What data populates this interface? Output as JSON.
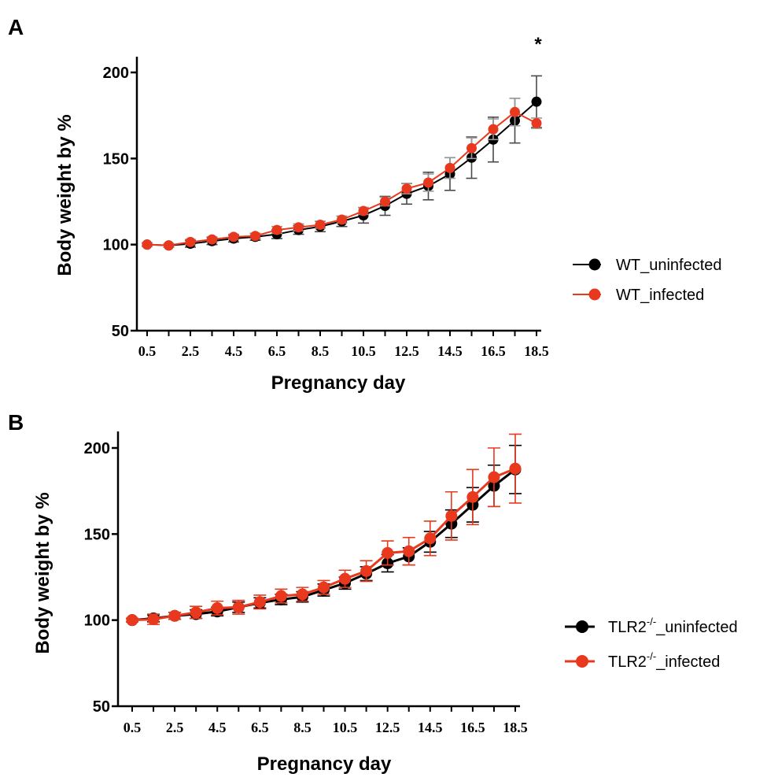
{
  "chart_data": [
    {
      "panel": "A",
      "type": "line",
      "xlabel": "Pregnancy day",
      "ylabel": "Body weight by %",
      "ylim": [
        50,
        210
      ],
      "yticks": [
        50,
        100,
        150,
        200
      ],
      "xticks": [
        "0.5",
        "2.5",
        "4.5",
        "6.5",
        "8.5",
        "10.5",
        "12.5",
        "14.5",
        "16.5",
        "18.5"
      ],
      "x": [
        0.5,
        1.5,
        2.5,
        3.5,
        4.5,
        5.5,
        6.5,
        7.5,
        8.5,
        9.5,
        10.5,
        11.5,
        12.5,
        13.5,
        14.5,
        15.5,
        16.5,
        17.5,
        18.5
      ],
      "annotation": "*",
      "annotation_x": 18.5,
      "legend_position": "right",
      "series": [
        {
          "name": "WT_uninfected",
          "color": "#000000",
          "errcolor": "#4a4a4a",
          "values": [
            100,
            99.5,
            100.5,
            102,
            103.5,
            104.5,
            106,
            108.5,
            110.5,
            113.5,
            117,
            122.5,
            129.5,
            134,
            141,
            150.5,
            161,
            172,
            183
          ],
          "errors": [
            1,
            1,
            2,
            2,
            2,
            2,
            2.5,
            2.5,
            3,
            3,
            4.5,
            5.5,
            6,
            8,
            9.5,
            12,
            13,
            13,
            15
          ]
        },
        {
          "name": "WT_infected",
          "color": "#e8391e",
          "errcolor": "#9a9a9a",
          "values": [
            100,
            99.5,
            101.5,
            103,
            104.5,
            105,
            108.5,
            110,
            111.5,
            114.5,
            119.5,
            125,
            132.5,
            136,
            144.5,
            156,
            167,
            177,
            170.5
          ],
          "errors": [
            1,
            1,
            1.5,
            1.5,
            1.5,
            1.5,
            2,
            2,
            2,
            2,
            2,
            2.5,
            3,
            5,
            6,
            6,
            6,
            8,
            3
          ]
        }
      ]
    },
    {
      "panel": "B",
      "type": "line",
      "xlabel": "Pregnancy day",
      "ylabel": "Body weight by %",
      "ylim": [
        50,
        210
      ],
      "yticks": [
        50,
        100,
        150,
        200
      ],
      "xticks": [
        "0.5",
        "2.5",
        "4.5",
        "6.5",
        "8.5",
        "10.5",
        "12.5",
        "14.5",
        "16.5",
        "18.5"
      ],
      "x": [
        0.5,
        1.5,
        2.5,
        3.5,
        4.5,
        5.5,
        6.5,
        7.5,
        8.5,
        9.5,
        10.5,
        11.5,
        12.5,
        13.5,
        14.5,
        15.5,
        16.5,
        17.5,
        18.5
      ],
      "legend_position": "right",
      "series": [
        {
          "name_base": "TLR2",
          "name_sup": "-/-",
          "name_suffix": "_uninfected",
          "color": "#000000",
          "errcolor": "#000000",
          "values": [
            100,
            101,
            102.5,
            103.5,
            105,
            107.5,
            110,
            112,
            113.5,
            117.5,
            121.5,
            127,
            133,
            137,
            145.5,
            156,
            167,
            178,
            187.5
          ],
          "errors": [
            1,
            2,
            2,
            2.5,
            2.5,
            3,
            3,
            3,
            3,
            3.5,
            3.5,
            4,
            5,
            5,
            6,
            8,
            10,
            12,
            14
          ]
        },
        {
          "name_base": "TLR2",
          "name_sup": "-/-",
          "name_suffix": "_infected",
          "color": "#e8391e",
          "errcolor": "#e8391e",
          "values": [
            100,
            100.5,
            102.5,
            104.5,
            107,
            107.5,
            110.5,
            114,
            115,
            119,
            124,
            128.5,
            139,
            140,
            147.5,
            160.5,
            171.5,
            183,
            188
          ],
          "errors": [
            1,
            3,
            2,
            3.5,
            4,
            4,
            4,
            4,
            4,
            4,
            5,
            6,
            7,
            8,
            10,
            14,
            16,
            17,
            20
          ]
        }
      ]
    }
  ]
}
